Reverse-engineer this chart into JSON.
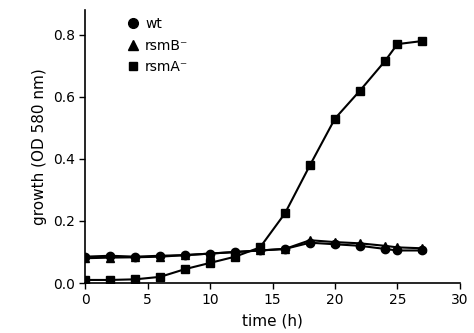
{
  "wt_x": [
    0,
    2,
    4,
    6,
    8,
    10,
    12,
    14,
    16,
    18,
    20,
    22,
    24,
    25,
    27
  ],
  "wt_y": [
    0.085,
    0.088,
    0.085,
    0.088,
    0.09,
    0.095,
    0.1,
    0.105,
    0.11,
    0.13,
    0.125,
    0.12,
    0.11,
    0.105,
    0.105
  ],
  "rsmb_x": [
    0,
    2,
    4,
    6,
    8,
    10,
    12,
    14,
    16,
    18,
    20,
    22,
    24,
    25,
    27
  ],
  "rsmb_y": [
    0.08,
    0.082,
    0.083,
    0.085,
    0.09,
    0.095,
    0.1,
    0.105,
    0.11,
    0.138,
    0.132,
    0.128,
    0.12,
    0.115,
    0.112
  ],
  "rsma_x": [
    0,
    2,
    4,
    6,
    8,
    10,
    12,
    14,
    16,
    18,
    20,
    22,
    24,
    25,
    27
  ],
  "rsma_y": [
    0.01,
    0.01,
    0.012,
    0.02,
    0.045,
    0.065,
    0.085,
    0.115,
    0.225,
    0.38,
    0.53,
    0.62,
    0.715,
    0.77,
    0.78
  ],
  "xlabel": "time (h)",
  "ylabel": "growth (OD 580 nm)",
  "xlim": [
    0,
    30
  ],
  "ylim": [
    0.0,
    0.88
  ],
  "yticks": [
    0.0,
    0.2,
    0.4,
    0.6,
    0.8
  ],
  "xticks": [
    0,
    5,
    10,
    15,
    20,
    25,
    30
  ],
  "legend_labels": [
    "wt",
    "rsmB⁻",
    "rsmA⁻"
  ],
  "color": "#000000",
  "linewidth": 1.5,
  "markersize": 6,
  "tick_fontsize": 10,
  "label_fontsize": 11,
  "legend_fontsize": 10
}
